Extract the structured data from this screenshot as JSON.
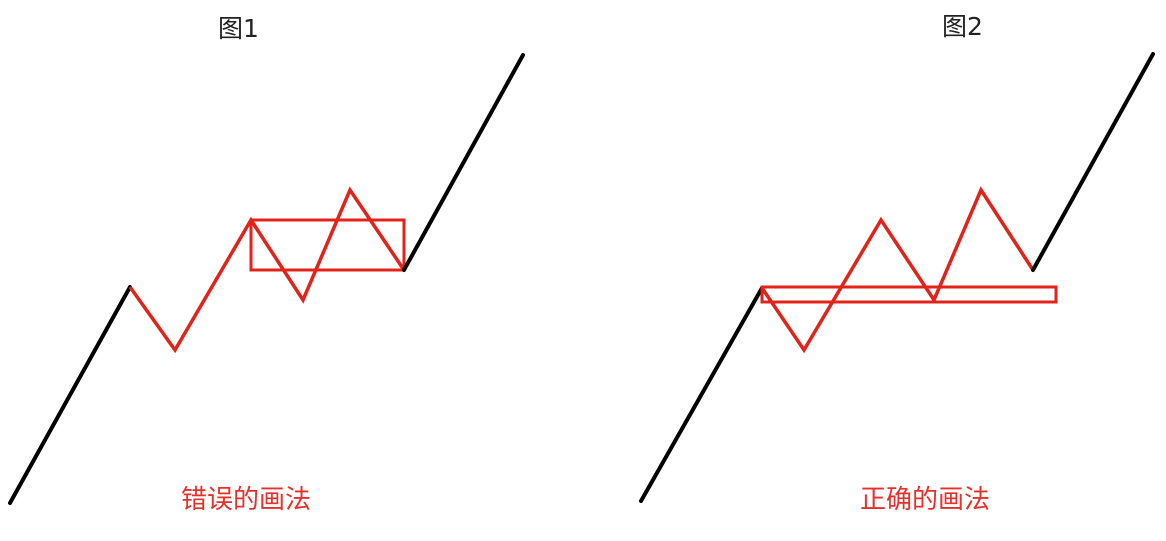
{
  "colors": {
    "trend_line": "#000000",
    "consolidation": "#e32219",
    "caption_text": "#e8302a",
    "title_text": "#222222"
  },
  "figure1": {
    "title": "图1",
    "caption": "错误的画法"
  },
  "figure2": {
    "title": "图2",
    "caption": "正确的画法"
  }
}
